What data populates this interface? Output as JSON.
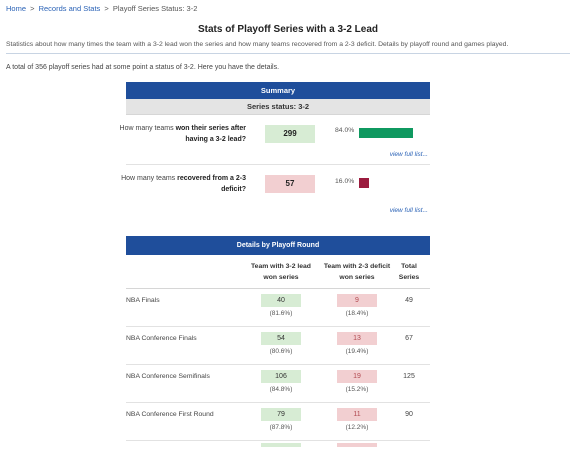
{
  "breadcrumb": {
    "home": "Home",
    "records": "Records and Stats",
    "current": "Playoff Series Status: 3-2",
    "separator": ">"
  },
  "title": "Stats of Playoff Series with a 3-2 Lead",
  "subtitle": "Statistics about how many times the team with a 3-2 lead won the series and how many teams recovered from a 2-3 deficit. Details by playoff round and games played.",
  "intro": "A total of 356 playoff series had at some point a status of 3-2. Here you have the details.",
  "summary": {
    "header": "Summary",
    "status": "Series status: 3-2",
    "rows": [
      {
        "q_prefix": "How many teams ",
        "q_bold": "won their series after having a 3-2 lead?",
        "value": "299",
        "pct": "84.0%",
        "fraction": 0.84,
        "color": "#0f9960",
        "link": "view full list..."
      },
      {
        "q_prefix": "How many teams ",
        "q_bold": "recovered from a 2-3 deficit?",
        "value": "57",
        "pct": "16.0%",
        "fraction": 0.16,
        "color": "#9b1b3e",
        "link": "view full list..."
      }
    ]
  },
  "details": {
    "header": "Details by Playoff Round",
    "columns": [
      "Team with 3-2 lead won series",
      "Team with 2-3 deficit won series",
      "Total Series"
    ],
    "rows": [
      {
        "round": "NBA Finals",
        "won": "40",
        "won_pct": "(81.6%)",
        "lost": "9",
        "lost_pct": "(18.4%)",
        "total": "49"
      },
      {
        "round": "NBA Conference Finals",
        "won": "54",
        "won_pct": "(80.6%)",
        "lost": "13",
        "lost_pct": "(19.4%)",
        "total": "67"
      },
      {
        "round": "NBA Conference Semifinals",
        "won": "106",
        "won_pct": "(84.8%)",
        "lost": "19",
        "lost_pct": "(15.2%)",
        "total": "125"
      },
      {
        "round": "NBA Conference First Round",
        "won": "79",
        "won_pct": "(87.8%)",
        "lost": "11",
        "lost_pct": "(12.2%)",
        "total": "90"
      }
    ]
  }
}
